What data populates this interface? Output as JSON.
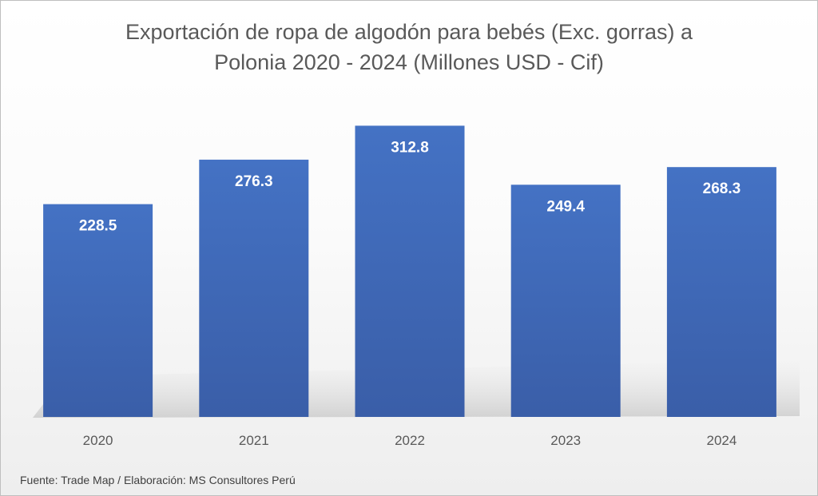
{
  "chart_data": {
    "type": "bar",
    "title_lines": [
      "Exportación de ropa de algodón para bebés (Exc. gorras) a",
      "Polonia 2020 - 2024 (Millones USD - Cif)"
    ],
    "categories": [
      "2020",
      "2021",
      "2022",
      "2023",
      "2024"
    ],
    "values": [
      228.5,
      276.3,
      312.8,
      249.4,
      268.3
    ],
    "data_labels": [
      "228.5",
      "276.3",
      "312.8",
      "249.4",
      "268.3"
    ],
    "xlabel": "",
    "ylabel": "",
    "ylim": [
      0,
      350
    ],
    "grid": false,
    "legend": "none",
    "bar_color": "#4472c4",
    "bar_color_dark": "#3a5ea8"
  },
  "source": "Fuente: Trade Map / Elaboración: MS Consultores Perú"
}
